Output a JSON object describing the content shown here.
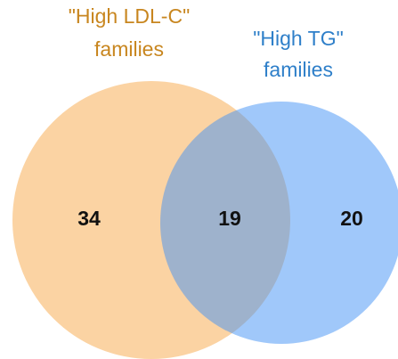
{
  "chart_data": {
    "type": "venn",
    "sets": [
      {
        "name": "\"High LDL-C\"",
        "subtitle": "families",
        "color": "#fbd3a3",
        "text_color": "#c8861f"
      },
      {
        "name": "\"High TG\"",
        "subtitle": "families",
        "color": "#4191f5",
        "text_color": "#2e7fc9"
      }
    ],
    "values": [
      34,
      19,
      20
    ]
  }
}
